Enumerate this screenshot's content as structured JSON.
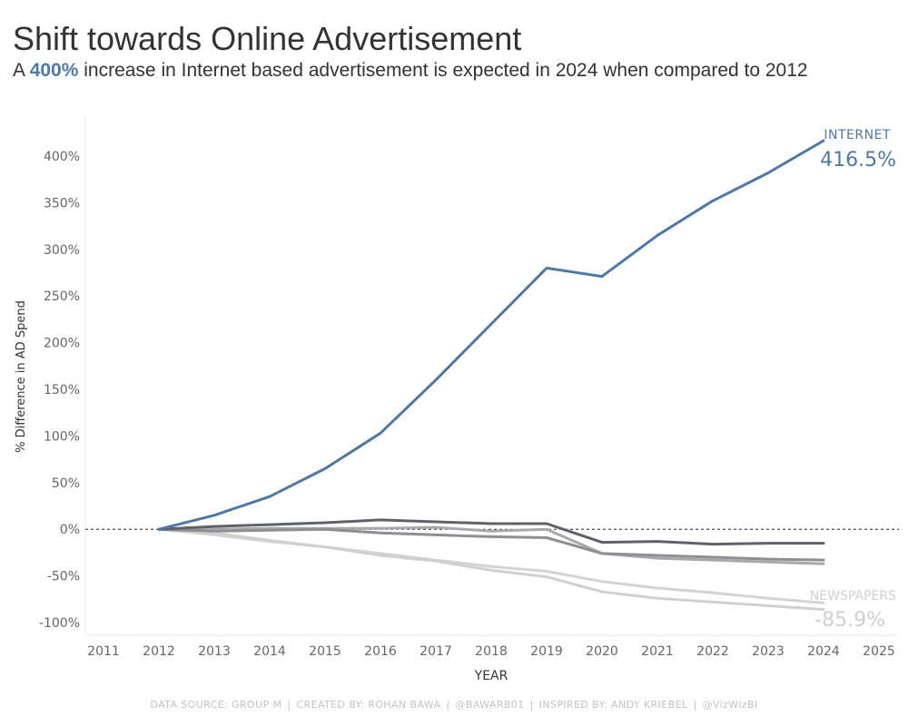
{
  "header": {
    "title": "Shift towards Online Advertisement",
    "subtitle_pre": "A ",
    "subtitle_highlight": "400%",
    "subtitle_post": " increase in Internet based advertisement is expected in 2024 when compared to 2012"
  },
  "footer": {
    "items": [
      "DATA SOURCE: GROUP M",
      "CREATED BY: ROHAN BAWA",
      "@BAWARB01",
      "INSPIRED BY: ANDY KRIEBEL",
      "@VizWizBI"
    ]
  },
  "colors": {
    "internet": "#4e79a7",
    "newspapers": "#d0d0d0",
    "dark_gray": "#5f6368",
    "mid_gray": "#8c8f93",
    "light_gray": "#a9a9a9",
    "axis_text": "#666666"
  },
  "chart_data": {
    "type": "line",
    "xlabel": "YEAR",
    "ylabel": "% Difference in AD Spend",
    "xlim": [
      2011,
      2025
    ],
    "ylim": [
      -110,
      440
    ],
    "x_ticks": [
      2011,
      2012,
      2013,
      2014,
      2015,
      2016,
      2017,
      2018,
      2019,
      2020,
      2021,
      2022,
      2023,
      2024,
      2025
    ],
    "y_ticks": [
      -100,
      -50,
      0,
      50,
      100,
      150,
      200,
      250,
      300,
      350,
      400
    ],
    "y_tick_labels": [
      "-100%",
      "-50%",
      "0%",
      "50%",
      "100%",
      "150%",
      "200%",
      "250%",
      "300%",
      "350%",
      "400%"
    ],
    "reference_line": 0,
    "x": [
      2012,
      2013,
      2014,
      2015,
      2016,
      2017,
      2018,
      2019,
      2020,
      2021,
      2022,
      2023,
      2024
    ],
    "series": [
      {
        "name": "INTERNET",
        "color": "#4e79a7",
        "label": "416.5%",
        "values": [
          0,
          15,
          35,
          65,
          103,
          160,
          220,
          280,
          271,
          315,
          352,
          382,
          416.5
        ]
      },
      {
        "color": "#5f6368",
        "values": [
          0,
          3,
          5,
          7,
          10,
          8,
          6,
          6,
          -14,
          -13,
          -16,
          -15,
          -15
        ]
      },
      {
        "color": "#8c8f93",
        "values": [
          0,
          -2,
          -1,
          0,
          -4,
          -6,
          -8,
          -9,
          -26,
          -28,
          -30,
          -32,
          -33
        ]
      },
      {
        "color": "#a9a9a9",
        "values": [
          0,
          0,
          1,
          1,
          1,
          2,
          -2,
          0,
          -26,
          -31,
          -33,
          -35,
          -37
        ]
      },
      {
        "name": "NEWSPAPERS",
        "color": "#d0d0d0",
        "label": "-85.9%",
        "values": [
          0,
          -4,
          -12,
          -19,
          -28,
          -34,
          -44,
          -51,
          -67,
          -74,
          -78,
          -82,
          -85.9
        ]
      },
      {
        "color": "#d4d4d4",
        "values": [
          0,
          -6,
          -13,
          -19,
          -26,
          -33,
          -40,
          -45,
          -56,
          -63,
          -68,
          -74,
          -79
        ]
      }
    ]
  }
}
